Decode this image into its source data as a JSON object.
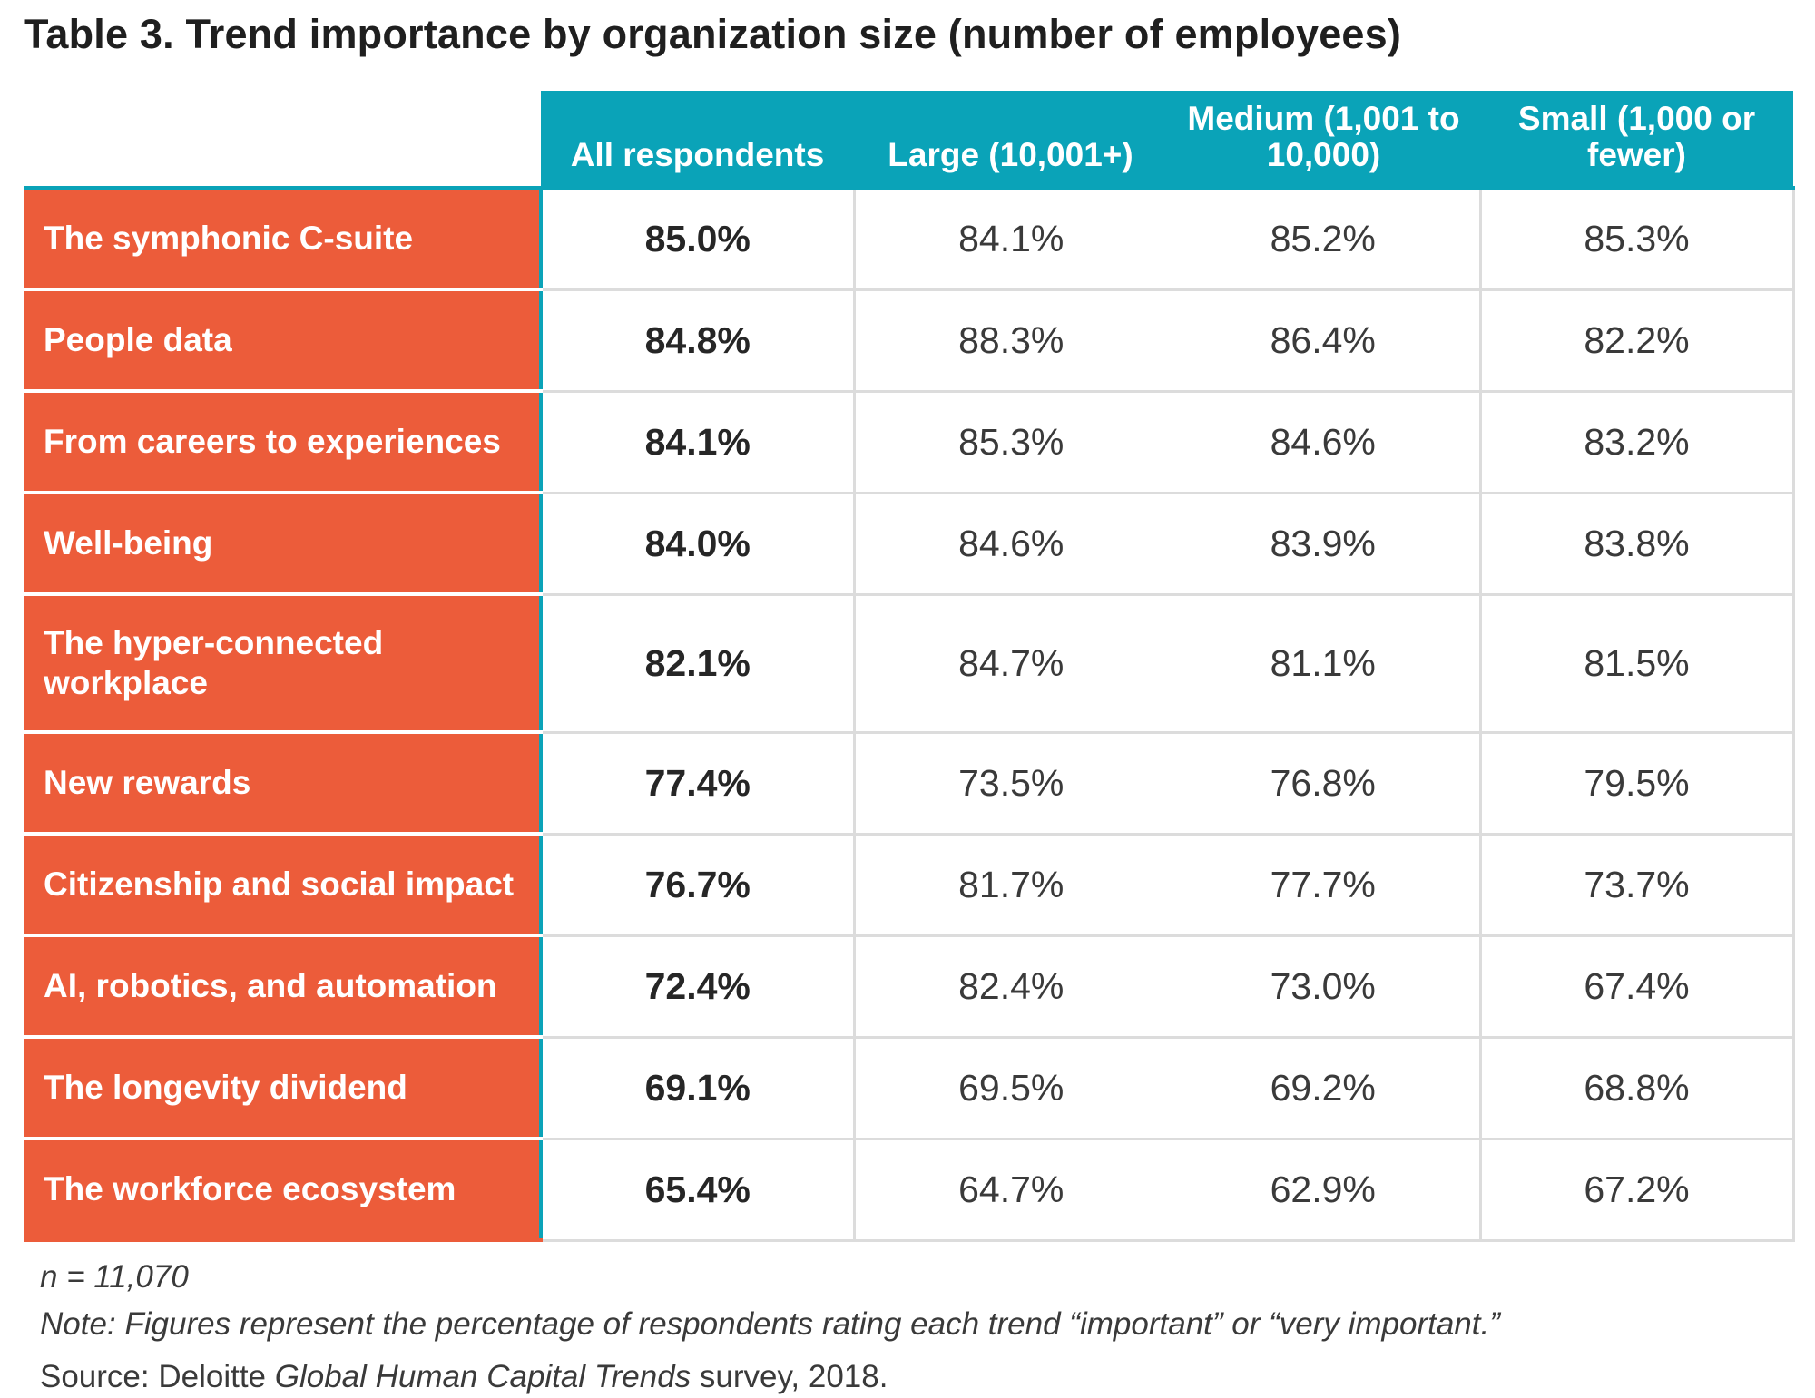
{
  "title": "Table 3. Trend importance by organization size (number of employees)",
  "colors": {
    "header_bg": "#0aa3b8",
    "label_bg": "#ec5c3a",
    "text_white": "#ffffff",
    "grid": "#dcdcdc"
  },
  "chart_data": {
    "type": "table",
    "title": "Table 3. Trend importance by organization size (number of employees)",
    "columns": [
      "All respondents",
      "Large (10,001+)",
      "Medium (1,001 to 10,000)",
      "Small (1,000 or fewer)"
    ],
    "rows": [
      {
        "label": "The symphonic C-suite",
        "values": [
          "85.0%",
          "84.1%",
          "85.2%",
          "85.3%"
        ]
      },
      {
        "label": "People data",
        "values": [
          "84.8%",
          "88.3%",
          "86.4%",
          "82.2%"
        ]
      },
      {
        "label": "From careers to experiences",
        "values": [
          "84.1%",
          "85.3%",
          "84.6%",
          "83.2%"
        ]
      },
      {
        "label": "Well-being",
        "values": [
          "84.0%",
          "84.6%",
          "83.9%",
          "83.8%"
        ]
      },
      {
        "label": "The hyper-connected workplace",
        "values": [
          "82.1%",
          "84.7%",
          "81.1%",
          "81.5%"
        ]
      },
      {
        "label": "New rewards",
        "values": [
          "77.4%",
          "73.5%",
          "76.8%",
          "79.5%"
        ]
      },
      {
        "label": "Citizenship and social impact",
        "values": [
          "76.7%",
          "81.7%",
          "77.7%",
          "73.7%"
        ]
      },
      {
        "label": "AI, robotics, and automation",
        "values": [
          "72.4%",
          "82.4%",
          "73.0%",
          "67.4%"
        ]
      },
      {
        "label": "The longevity dividend",
        "values": [
          "69.1%",
          "69.5%",
          "69.2%",
          "68.8%"
        ]
      },
      {
        "label": "The workforce ecosystem",
        "values": [
          "65.4%",
          "64.7%",
          "62.9%",
          "67.2%"
        ]
      }
    ]
  },
  "notes": {
    "n": "n = 11,070",
    "note": "Note: Figures represent the percentage of respondents rating each trend “important” or “very important.”",
    "source_prefix": "Source: Deloitte ",
    "source_italic": "Global Human Capital Trends",
    "source_suffix": " survey, 2018."
  }
}
